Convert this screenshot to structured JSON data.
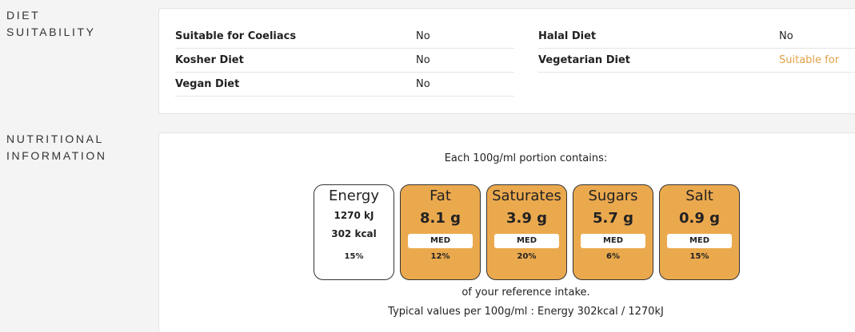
{
  "diet": {
    "label_line1": "DIET",
    "label_line2": "SUITABILITY",
    "rows": [
      {
        "label": "Suitable for Coeliacs",
        "value": "No"
      },
      {
        "label": "Kosher Diet",
        "value": "No"
      },
      {
        "label": "Vegan Diet",
        "value": "No"
      },
      {
        "label": "Halal Diet",
        "value": "No"
      },
      {
        "label": "Vegetarian Diet",
        "value": "Suitable for"
      }
    ]
  },
  "nutrition": {
    "label_line1": "NUTRITIONAL",
    "label_line2": "INFORMATION",
    "portion_caption": "Each 100g/ml portion contains:",
    "energy": {
      "name": "Energy",
      "kj": "1270 kJ",
      "kcal": "302 kcal",
      "pct": "15%"
    },
    "tiles": [
      {
        "name": "Fat",
        "value": "8.1 g",
        "level": "MED",
        "pct": "12%"
      },
      {
        "name": "Saturates",
        "value": "3.9 g",
        "level": "MED",
        "pct": "20%"
      },
      {
        "name": "Sugars",
        "value": "5.7 g",
        "level": "MED",
        "pct": "6%"
      },
      {
        "name": "Salt",
        "value": "0.9 g",
        "level": "MED",
        "pct": "15%"
      }
    ],
    "reference_caption": "of your reference intake.",
    "typical_caption": "Typical values per 100g/ml : Energy 302kcal / 1270kJ"
  },
  "colors": {
    "medium_tile": "#eba94e",
    "suitable_text": "#e2a14a",
    "page_bg": "#f4f4f4"
  }
}
